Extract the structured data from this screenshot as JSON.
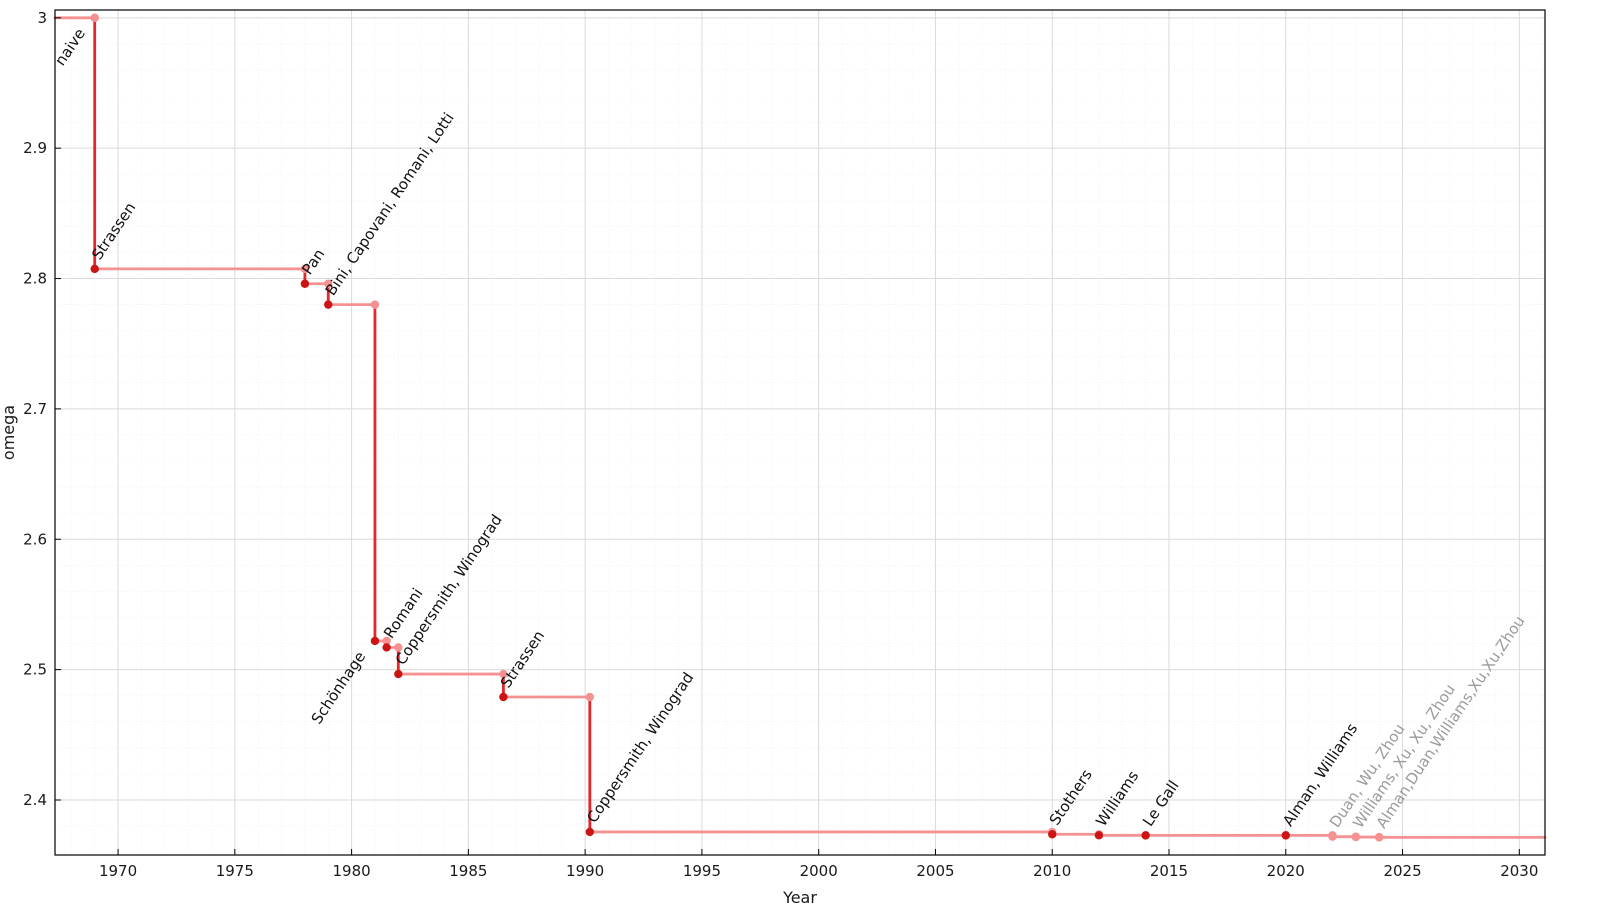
{
  "chart_data": {
    "type": "line",
    "subtype": "step-post",
    "title": "",
    "xlabel": "Year",
    "ylabel": "omega",
    "grid": true,
    "legend": "none",
    "xlim": [
      1967.3,
      2031.1
    ],
    "ylim": [
      2.3578,
      3.006
    ],
    "x_minor_step": 1,
    "y_minor_step": 0.02,
    "xticks": [
      {
        "v": 1970,
        "label": "1970"
      },
      {
        "v": 1975,
        "label": "1975"
      },
      {
        "v": 1980,
        "label": "1980"
      },
      {
        "v": 1985,
        "label": "1985"
      },
      {
        "v": 1990,
        "label": "1990"
      },
      {
        "v": 1995,
        "label": "1995"
      },
      {
        "v": 2000,
        "label": "2000"
      },
      {
        "v": 2005,
        "label": "2005"
      },
      {
        "v": 2010,
        "label": "2010"
      },
      {
        "v": 2015,
        "label": "2015"
      },
      {
        "v": 2020,
        "label": "2020"
      },
      {
        "v": 2025,
        "label": "2025"
      },
      {
        "v": 2030,
        "label": "2030"
      }
    ],
    "yticks": [
      {
        "v": 2.4,
        "label": "2.4"
      },
      {
        "v": 2.5,
        "label": "2.5"
      },
      {
        "v": 2.6,
        "label": "2.6"
      },
      {
        "v": 2.7,
        "label": "2.7"
      },
      {
        "v": 2.8,
        "label": "2.8"
      },
      {
        "v": 2.9,
        "label": "2.9"
      },
      {
        "v": 3.0,
        "label": "3"
      }
    ],
    "points": [
      {
        "year": 1969,
        "omega": 3.0,
        "label": "naive",
        "marker": "pink",
        "label_color": "black",
        "anchor": "end"
      },
      {
        "year": 1969,
        "omega": 2.8074,
        "label": "Strassen",
        "marker": "red",
        "label_color": "black",
        "anchor": "start"
      },
      {
        "year": 1978,
        "omega": 2.796,
        "label": "Pan",
        "marker": "red",
        "label_color": "black",
        "anchor": "start"
      },
      {
        "year": 1979,
        "omega": 2.78,
        "label": "Bini, Capovani, Romani, Lotti",
        "marker": "red",
        "label_color": "black",
        "anchor": "start"
      },
      {
        "year": 1981,
        "omega": 2.522,
        "label": "Schönhage",
        "marker": "red",
        "label_color": "black",
        "anchor": "end"
      },
      {
        "year": 1981.5,
        "omega": 2.517,
        "label": "Romani",
        "marker": "red",
        "label_color": "black",
        "anchor": "start"
      },
      {
        "year": 1982,
        "omega": 2.4966,
        "label": "Coppersmith, Winograd",
        "marker": "red",
        "label_color": "black",
        "anchor": "start"
      },
      {
        "year": 1986.5,
        "omega": 2.479,
        "label": "Strassen",
        "marker": "red",
        "label_color": "black",
        "anchor": "start"
      },
      {
        "year": 1990.2,
        "omega": 2.3755,
        "label": "Coppersmith, Winograd",
        "marker": "red",
        "label_color": "black",
        "anchor": "start"
      },
      {
        "year": 2010,
        "omega": 2.3737,
        "label": "Stothers",
        "marker": "red",
        "label_color": "black",
        "anchor": "start"
      },
      {
        "year": 2012,
        "omega": 2.3729,
        "label": "Williams",
        "marker": "red",
        "label_color": "black",
        "anchor": "start"
      },
      {
        "year": 2014,
        "omega": 2.3728639,
        "label": "Le Gall",
        "marker": "red",
        "label_color": "black",
        "anchor": "start"
      },
      {
        "year": 2020,
        "omega": 2.3728596,
        "label": "Alman, Williams",
        "marker": "red",
        "label_color": "black",
        "anchor": "start"
      },
      {
        "year": 2022,
        "omega": 2.371866,
        "label": "Duan, Wu, Zhou",
        "marker": "pink",
        "label_color": "gray",
        "anchor": "start"
      },
      {
        "year": 2023,
        "omega": 2.371552,
        "label": "Williams, Xu, Xu, Zhou",
        "marker": "pink",
        "label_color": "gray",
        "anchor": "start"
      },
      {
        "year": 2024,
        "omega": 2.371339,
        "label": "Alman,Duan,Williams,Xu,Xu,Zhou",
        "marker": "pink",
        "label_color": "gray",
        "anchor": "start"
      }
    ],
    "colors": {
      "line_horizontal": "#f69191",
      "line_vertical": "#e5262b",
      "marker_red": "#cc1414",
      "marker_pink": "#f69191",
      "grid_major": "#dadada",
      "grid_minor": "#efefef",
      "frame": "#000000",
      "tick_text": "#1a1a1a",
      "label_black": "#111111",
      "label_gray": "#9b9b9b"
    }
  }
}
